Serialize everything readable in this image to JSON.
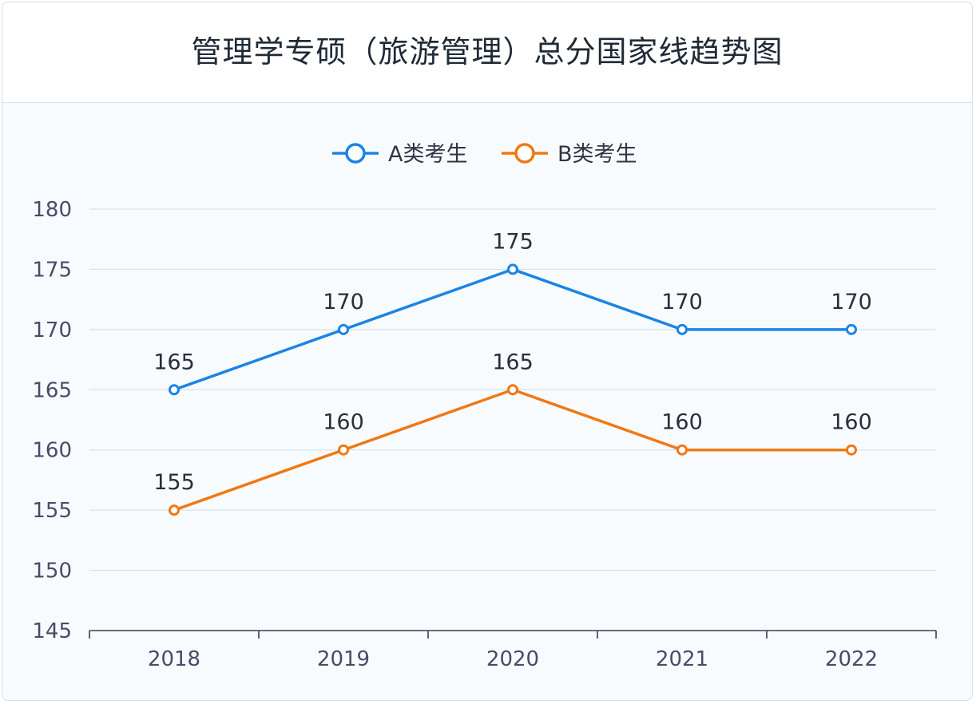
{
  "chart_data": {
    "type": "line",
    "title": "管理学专硕（旅游管理）总分国家线趋势图",
    "categories": [
      "2018",
      "2019",
      "2020",
      "2021",
      "2022"
    ],
    "ylim": [
      145,
      180
    ],
    "yticks": [
      145,
      150,
      155,
      160,
      165,
      170,
      175,
      180
    ],
    "grid": true,
    "legend": "top-center",
    "series": [
      {
        "name": "A类考生",
        "values": [
          165,
          170,
          175,
          170,
          170
        ],
        "color": "#1a84e6"
      },
      {
        "name": "B类考生",
        "values": [
          155,
          160,
          165,
          160,
          160
        ],
        "color": "#f07814"
      }
    ]
  }
}
